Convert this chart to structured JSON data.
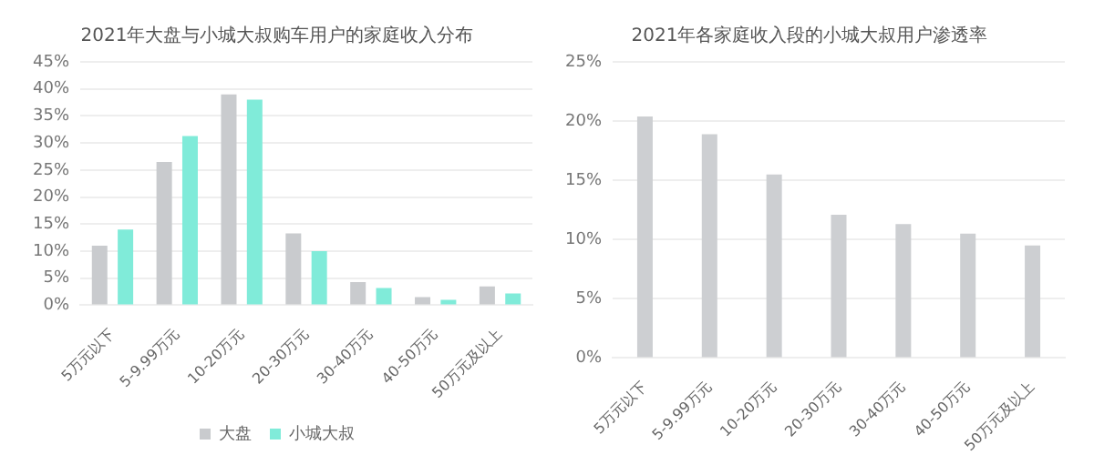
{
  "chart_data": [
    {
      "type": "bar",
      "title": "2021年大盘与小城大叔购车用户的家庭收入分布",
      "categories": [
        "5万元以下",
        "5-9.99万元",
        "10-20万元",
        "20-30万元",
        "30-40万元",
        "40-50万元",
        "50万元及以上"
      ],
      "series": [
        {
          "name": "大盘",
          "color": "#c9cbce",
          "values": [
            11,
            26.5,
            39,
            13.3,
            4.3,
            1.5,
            3.5
          ]
        },
        {
          "name": "小城大叔",
          "color": "#80ebd9",
          "values": [
            14,
            31.3,
            38,
            10,
            3.2,
            1,
            2.2
          ]
        }
      ],
      "ylim": [
        0,
        45
      ],
      "yticks": [
        {
          "value": 0,
          "label": "0%"
        },
        {
          "value": 5,
          "label": "5%"
        },
        {
          "value": 10,
          "label": "10%"
        },
        {
          "value": 15,
          "label": "15%"
        },
        {
          "value": 20,
          "label": "20%"
        },
        {
          "value": 25,
          "label": "25%"
        },
        {
          "value": 30,
          "label": "30%"
        },
        {
          "value": 35,
          "label": "35%"
        },
        {
          "value": 40,
          "label": "40%"
        },
        {
          "value": 45,
          "label": "45%"
        }
      ],
      "grid": "y",
      "legend": "bottom"
    },
    {
      "type": "bar",
      "title": "2021年各家庭收入段的小城大叔用户渗透率",
      "categories": [
        "5万元以下",
        "5-9.99万元",
        "10-20万元",
        "20-30万元",
        "30-40万元",
        "40-50万元",
        "50万元及以上"
      ],
      "series": [
        {
          "color": "#cdcfd2",
          "values": [
            20.4,
            18.9,
            15.5,
            12.1,
            11.3,
            10.5,
            9.5
          ]
        }
      ],
      "ylim": [
        0,
        25
      ],
      "yticks": [
        {
          "value": 0,
          "label": "0%"
        },
        {
          "value": 5,
          "label": "5%"
        },
        {
          "value": 10,
          "label": "10%"
        },
        {
          "value": 15,
          "label": "15%"
        },
        {
          "value": 20,
          "label": "20%"
        },
        {
          "value": 25,
          "label": "25%"
        }
      ],
      "grid": "y"
    }
  ]
}
